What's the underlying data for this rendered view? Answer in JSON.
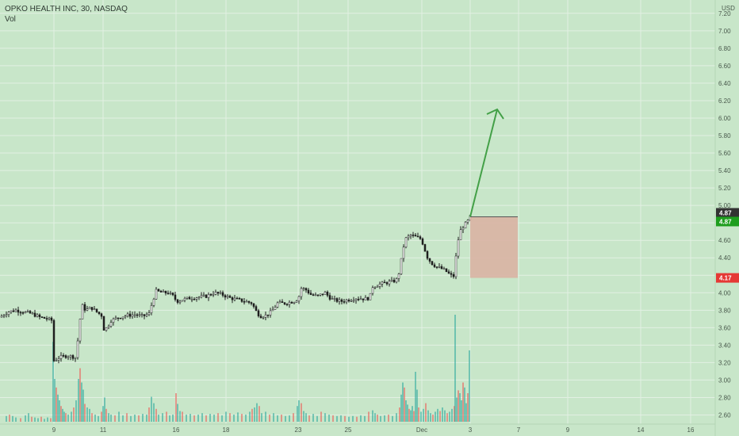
{
  "colors": {
    "background": "#c8e6c9",
    "grid": "#e2f0e3",
    "up": "#26a69a",
    "down": "#ef5350",
    "candle_body_up": "#ffffff",
    "candle_body_down": "#1e1e1e",
    "wick": "#1e1e1e",
    "arrow": "#43a047",
    "box": "#d9b3a3",
    "label_price_dark": "#333333",
    "label_price_green": "#1e9e1e",
    "label_price_red": "#e53935"
  },
  "header": {
    "symbol": "OPKO HEALTH INC, 30, NASDAQ",
    "volume_label": "Vol"
  },
  "chart_data": {
    "type": "candlestick",
    "currency_label": "USD",
    "y_ticks": [
      "2.60",
      "2.80",
      "3.00",
      "3.20",
      "3.40",
      "3.60",
      "3.80",
      "4.00",
      "4.20",
      "4.40",
      "4.60",
      "4.80",
      "5.00",
      "5.20",
      "5.40",
      "5.60",
      "5.80",
      "6.00",
      "6.20",
      "6.40",
      "6.60",
      "6.80",
      "7.00",
      "7.20"
    ],
    "y_range": [
      2.55,
      7.28
    ],
    "x_ticks": [
      "9",
      "11",
      "16",
      "18",
      "23",
      "25",
      "Dec",
      "3",
      "7",
      "9",
      "14",
      "16"
    ],
    "price_labels": [
      {
        "value": 4.87,
        "text": "4.87",
        "style": "dark"
      },
      {
        "value": 4.87,
        "text": "4.87",
        "style": "green"
      },
      {
        "value": 4.17,
        "text": "4.17",
        "style": "red"
      }
    ],
    "target_arrow": {
      "from_price": 4.87,
      "to_price": 6.1
    },
    "risk_box": {
      "top_price": 4.87,
      "bottom_price": 4.17
    },
    "price_path": [
      [
        0,
        3.72
      ],
      [
        10,
        3.78
      ],
      [
        20,
        3.8
      ],
      [
        30,
        3.78
      ],
      [
        40,
        3.76
      ],
      [
        50,
        3.72
      ],
      [
        60,
        3.7
      ],
      [
        66,
        3.68
      ],
      [
        68,
        3.22
      ],
      [
        75,
        3.26
      ],
      [
        85,
        3.28
      ],
      [
        95,
        3.26
      ],
      [
        98,
        3.45
      ],
      [
        101,
        3.7
      ],
      [
        104,
        3.85
      ],
      [
        108,
        3.8
      ],
      [
        115,
        3.83
      ],
      [
        122,
        3.78
      ],
      [
        128,
        3.74
      ],
      [
        130,
        3.58
      ],
      [
        135,
        3.6
      ],
      [
        140,
        3.68
      ],
      [
        150,
        3.72
      ],
      [
        160,
        3.74
      ],
      [
        170,
        3.75
      ],
      [
        180,
        3.73
      ],
      [
        188,
        3.76
      ],
      [
        193,
        3.92
      ],
      [
        197,
        4.02
      ],
      [
        205,
        4.0
      ],
      [
        212,
        4.0
      ],
      [
        220,
        3.95
      ],
      [
        222,
        3.9
      ],
      [
        230,
        3.92
      ],
      [
        240,
        3.94
      ],
      [
        250,
        3.95
      ],
      [
        260,
        3.96
      ],
      [
        270,
        4.0
      ],
      [
        280,
        3.98
      ],
      [
        290,
        3.94
      ],
      [
        300,
        3.92
      ],
      [
        310,
        3.9
      ],
      [
        318,
        3.88
      ],
      [
        322,
        3.8
      ],
      [
        328,
        3.73
      ],
      [
        335,
        3.74
      ],
      [
        342,
        3.78
      ],
      [
        350,
        3.88
      ],
      [
        360,
        3.88
      ],
      [
        370,
        3.9
      ],
      [
        376,
        3.93
      ],
      [
        380,
        4.05
      ],
      [
        385,
        4.04
      ],
      [
        392,
        3.98
      ],
      [
        400,
        3.96
      ],
      [
        410,
        4.0
      ],
      [
        415,
        3.95
      ],
      [
        420,
        3.92
      ],
      [
        430,
        3.9
      ],
      [
        440,
        3.92
      ],
      [
        450,
        3.94
      ],
      [
        460,
        3.93
      ],
      [
        466,
        3.94
      ],
      [
        470,
        4.07
      ],
      [
        480,
        4.1
      ],
      [
        490,
        4.12
      ],
      [
        496,
        4.13
      ],
      [
        500,
        4.15
      ],
      [
        504,
        4.25
      ],
      [
        508,
        4.5
      ],
      [
        512,
        4.62
      ],
      [
        518,
        4.66
      ],
      [
        524,
        4.64
      ],
      [
        530,
        4.62
      ],
      [
        534,
        4.55
      ],
      [
        538,
        4.42
      ],
      [
        544,
        4.34
      ],
      [
        550,
        4.3
      ],
      [
        556,
        4.28
      ],
      [
        562,
        4.25
      ],
      [
        568,
        4.2
      ],
      [
        572,
        4.19
      ],
      [
        574,
        4.3
      ],
      [
        576,
        4.52
      ],
      [
        580,
        4.7
      ],
      [
        585,
        4.77
      ],
      [
        590,
        4.82
      ],
      [
        593,
        4.87
      ]
    ],
    "volume_bars": [
      [
        8,
        8
      ],
      [
        12,
        10
      ],
      [
        16,
        8
      ],
      [
        20,
        6
      ],
      [
        26,
        5
      ],
      [
        32,
        9
      ],
      [
        36,
        12
      ],
      [
        40,
        7
      ],
      [
        44,
        6
      ],
      [
        48,
        5
      ],
      [
        52,
        7
      ],
      [
        56,
        4
      ],
      [
        60,
        6
      ],
      [
        64,
        5
      ],
      [
        67,
        112
      ],
      [
        69,
        60
      ],
      [
        71,
        48
      ],
      [
        73,
        38
      ],
      [
        75,
        30
      ],
      [
        77,
        22
      ],
      [
        79,
        18
      ],
      [
        81,
        14
      ],
      [
        83,
        12
      ],
      [
        86,
        10
      ],
      [
        90,
        14
      ],
      [
        93,
        20
      ],
      [
        96,
        30
      ],
      [
        99,
        60
      ],
      [
        101,
        75
      ],
      [
        103,
        55
      ],
      [
        105,
        45
      ],
      [
        107,
        25
      ],
      [
        110,
        20
      ],
      [
        113,
        18
      ],
      [
        116,
        12
      ],
      [
        120,
        10
      ],
      [
        124,
        8
      ],
      [
        128,
        14
      ],
      [
        130,
        22
      ],
      [
        132,
        34
      ],
      [
        134,
        18
      ],
      [
        137,
        12
      ],
      [
        140,
        10
      ],
      [
        145,
        9
      ],
      [
        150,
        14
      ],
      [
        155,
        9
      ],
      [
        160,
        12
      ],
      [
        165,
        8
      ],
      [
        170,
        10
      ],
      [
        175,
        9
      ],
      [
        180,
        11
      ],
      [
        185,
        10
      ],
      [
        188,
        20
      ],
      [
        191,
        35
      ],
      [
        194,
        26
      ],
      [
        197,
        18
      ],
      [
        200,
        10
      ],
      [
        205,
        12
      ],
      [
        210,
        14
      ],
      [
        214,
        9
      ],
      [
        218,
        10
      ],
      [
        222,
        40
      ],
      [
        224,
        25
      ],
      [
        227,
        15
      ],
      [
        230,
        14
      ],
      [
        235,
        10
      ],
      [
        240,
        11
      ],
      [
        245,
        9
      ],
      [
        250,
        10
      ],
      [
        255,
        12
      ],
      [
        260,
        9
      ],
      [
        265,
        11
      ],
      [
        270,
        10
      ],
      [
        275,
        12
      ],
      [
        280,
        9
      ],
      [
        285,
        14
      ],
      [
        290,
        12
      ],
      [
        295,
        10
      ],
      [
        300,
        13
      ],
      [
        305,
        11
      ],
      [
        310,
        10
      ],
      [
        315,
        14
      ],
      [
        318,
        18
      ],
      [
        321,
        20
      ],
      [
        324,
        26
      ],
      [
        327,
        22
      ],
      [
        330,
        12
      ],
      [
        335,
        14
      ],
      [
        340,
        10
      ],
      [
        345,
        12
      ],
      [
        350,
        9
      ],
      [
        355,
        10
      ],
      [
        360,
        8
      ],
      [
        365,
        9
      ],
      [
        370,
        12
      ],
      [
        375,
        22
      ],
      [
        377,
        30
      ],
      [
        380,
        26
      ],
      [
        383,
        15
      ],
      [
        386,
        12
      ],
      [
        390,
        9
      ],
      [
        395,
        11
      ],
      [
        400,
        8
      ],
      [
        405,
        14
      ],
      [
        410,
        12
      ],
      [
        415,
        10
      ],
      [
        420,
        9
      ],
      [
        425,
        8
      ],
      [
        430,
        9
      ],
      [
        435,
        8
      ],
      [
        440,
        7
      ],
      [
        445,
        8
      ],
      [
        450,
        7
      ],
      [
        455,
        9
      ],
      [
        460,
        8
      ],
      [
        465,
        14
      ],
      [
        470,
        16
      ],
      [
        473,
        12
      ],
      [
        476,
        10
      ],
      [
        480,
        8
      ],
      [
        485,
        9
      ],
      [
        490,
        10
      ],
      [
        495,
        8
      ],
      [
        500,
        12
      ],
      [
        504,
        20
      ],
      [
        506,
        38
      ],
      [
        508,
        55
      ],
      [
        510,
        48
      ],
      [
        512,
        30
      ],
      [
        514,
        24
      ],
      [
        516,
        18
      ],
      [
        518,
        16
      ],
      [
        520,
        22
      ],
      [
        522,
        15
      ],
      [
        524,
        70
      ],
      [
        526,
        45
      ],
      [
        528,
        20
      ],
      [
        531,
        14
      ],
      [
        534,
        18
      ],
      [
        537,
        26
      ],
      [
        540,
        16
      ],
      [
        543,
        12
      ],
      [
        546,
        10
      ],
      [
        549,
        14
      ],
      [
        552,
        18
      ],
      [
        555,
        15
      ],
      [
        558,
        20
      ],
      [
        561,
        16
      ],
      [
        564,
        12
      ],
      [
        567,
        14
      ],
      [
        570,
        18
      ],
      [
        573,
        22
      ],
      [
        574,
        150
      ],
      [
        576,
        34
      ],
      [
        578,
        44
      ],
      [
        580,
        40
      ],
      [
        582,
        30
      ],
      [
        584,
        55
      ],
      [
        586,
        48
      ],
      [
        588,
        26
      ],
      [
        590,
        40
      ],
      [
        592,
        100
      ]
    ]
  }
}
